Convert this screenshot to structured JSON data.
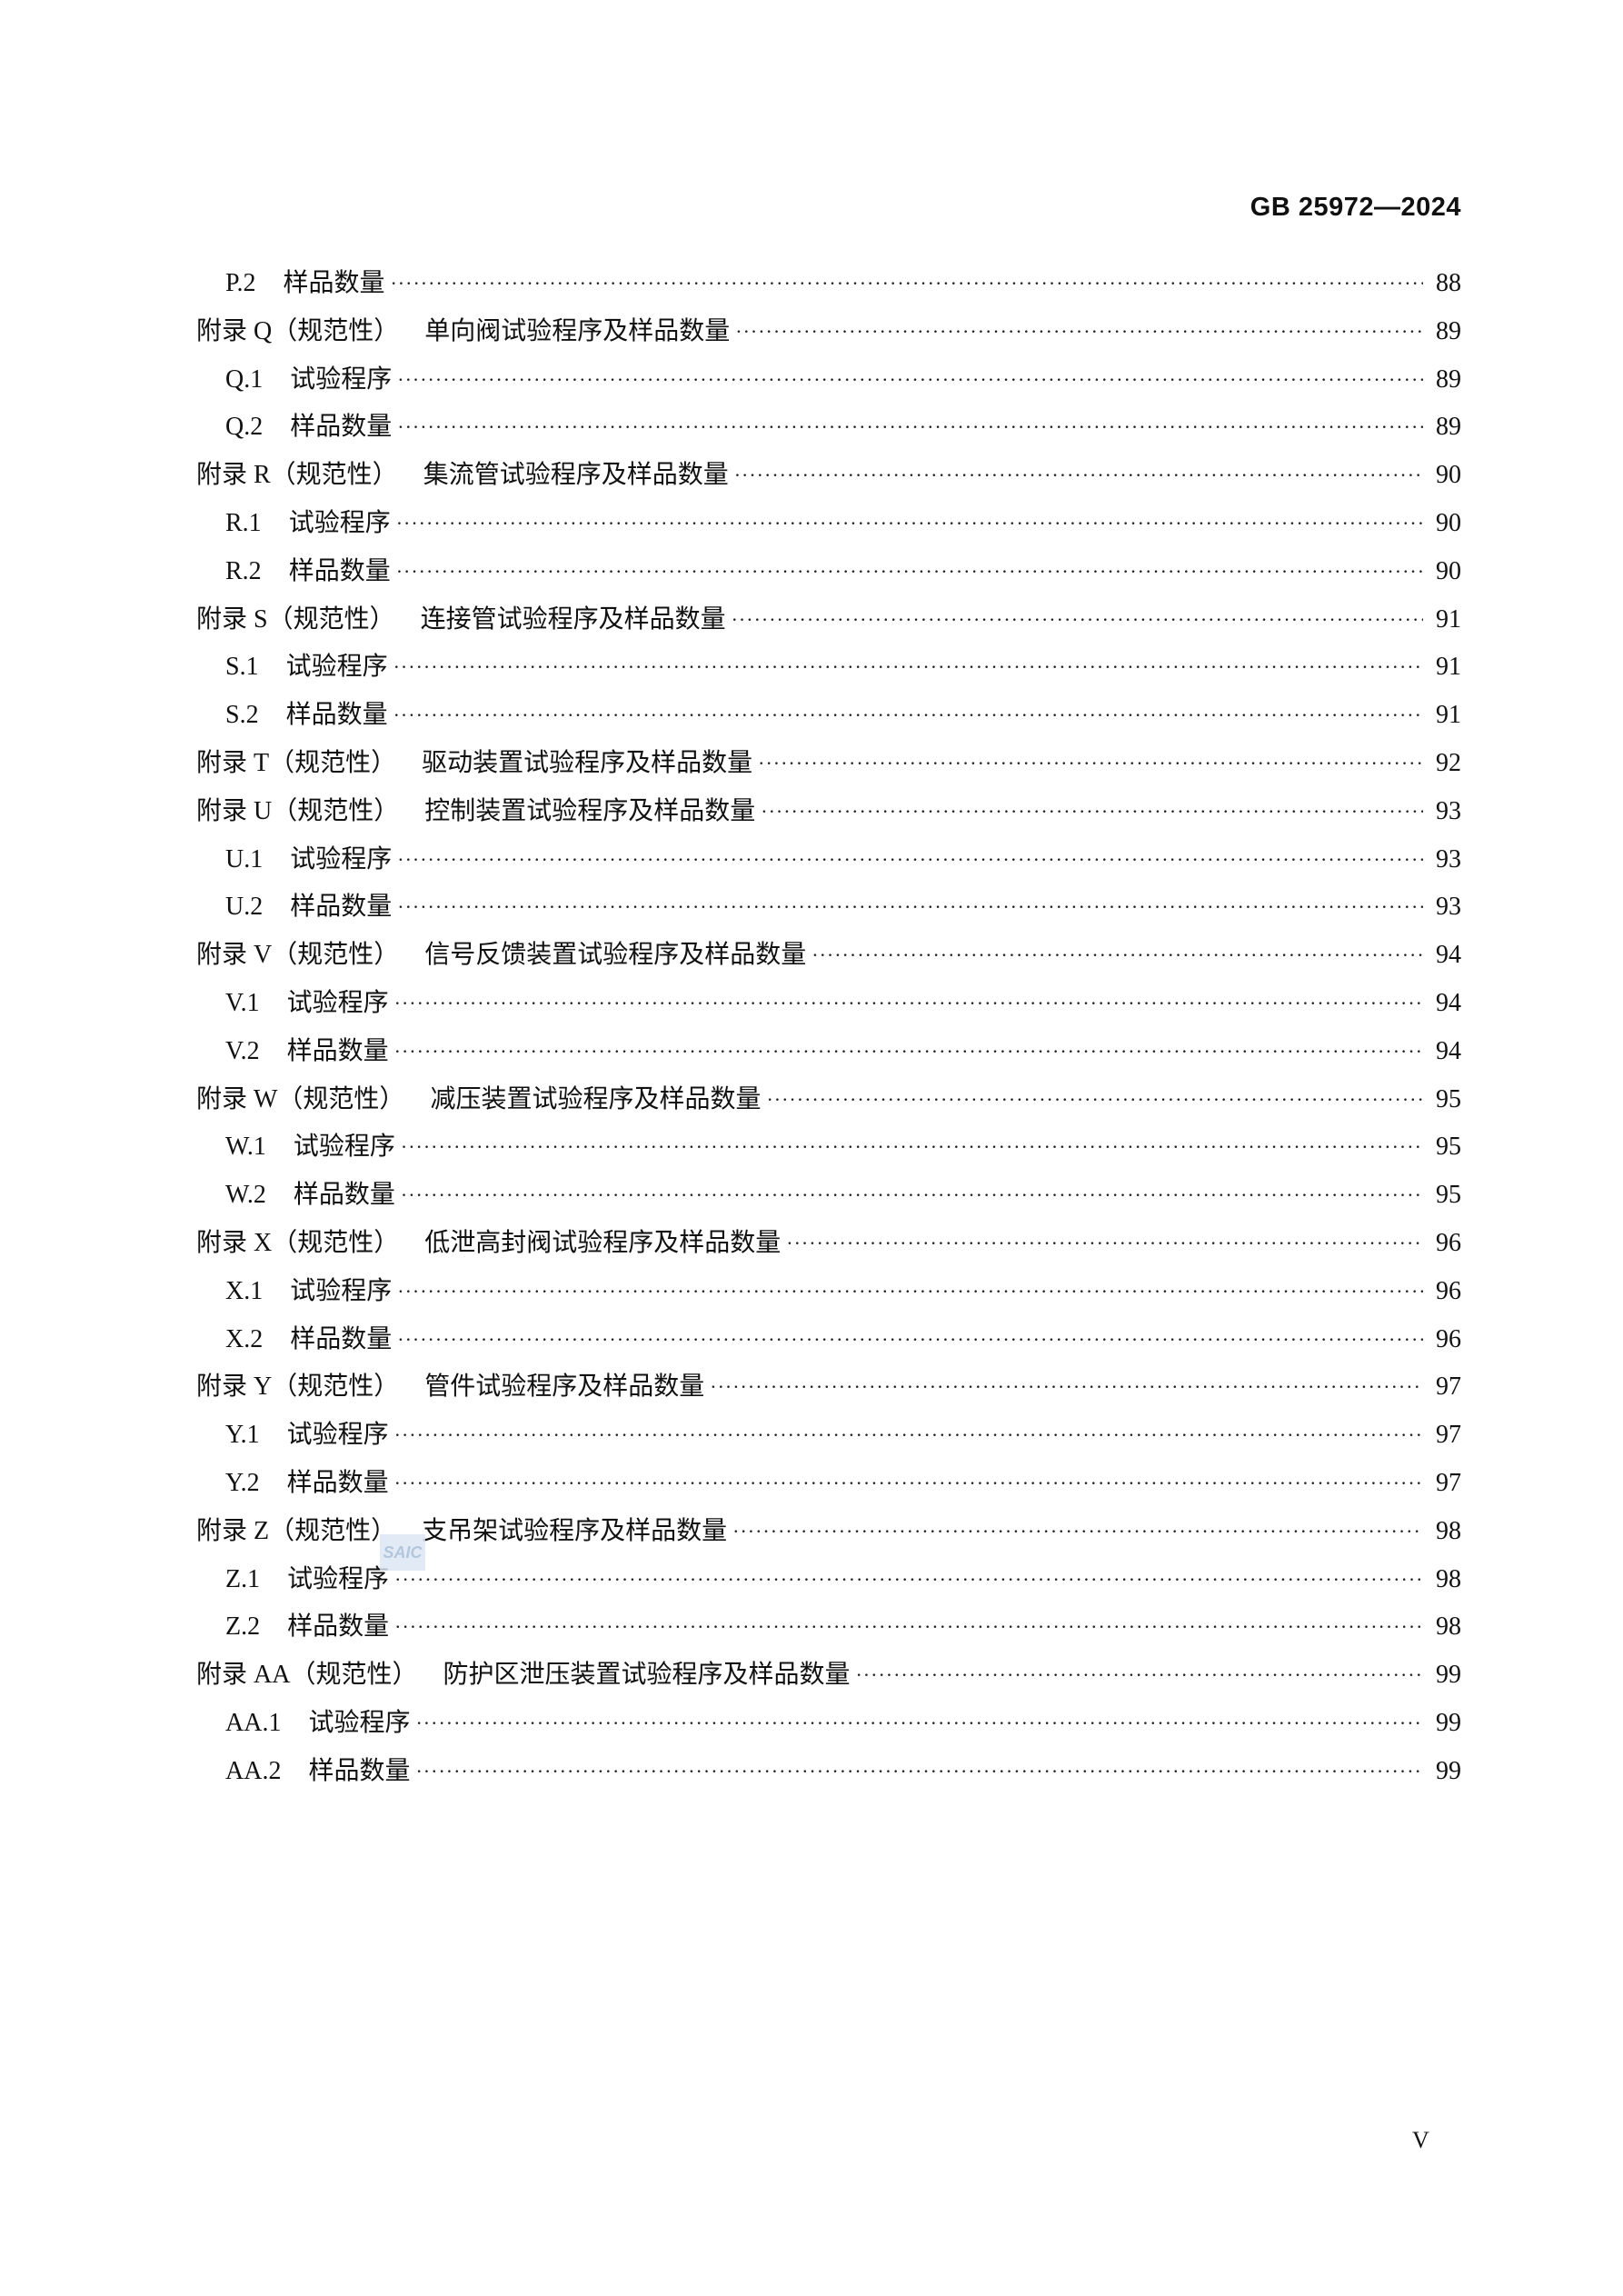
{
  "header": {
    "standard_number": "GB 25972—2024"
  },
  "watermark": "SAIC",
  "toc": [
    {
      "level": 2,
      "code": "P.2",
      "title": "样品数量",
      "page": "88"
    },
    {
      "level": 1,
      "code": "附录 Q（规范性）",
      "title": "单向阀试验程序及样品数量",
      "page": "89"
    },
    {
      "level": 2,
      "code": "Q.1",
      "title": "试验程序",
      "page": "89"
    },
    {
      "level": 2,
      "code": "Q.2",
      "title": "样品数量",
      "page": "89"
    },
    {
      "level": 1,
      "code": "附录 R（规范性）",
      "title": "集流管试验程序及样品数量",
      "page": "90"
    },
    {
      "level": 2,
      "code": "R.1",
      "title": "试验程序",
      "page": "90"
    },
    {
      "level": 2,
      "code": "R.2",
      "title": "样品数量",
      "page": "90"
    },
    {
      "level": 1,
      "code": "附录 S（规范性）",
      "title": "连接管试验程序及样品数量",
      "page": "91"
    },
    {
      "level": 2,
      "code": "S.1",
      "title": "试验程序",
      "page": "91"
    },
    {
      "level": 2,
      "code": "S.2",
      "title": "样品数量",
      "page": "91"
    },
    {
      "level": 1,
      "code": "附录 T（规范性）",
      "title": "驱动装置试验程序及样品数量",
      "page": "92"
    },
    {
      "level": 1,
      "code": "附录 U（规范性）",
      "title": "控制装置试验程序及样品数量",
      "page": "93"
    },
    {
      "level": 2,
      "code": "U.1",
      "title": "试验程序",
      "page": "93"
    },
    {
      "level": 2,
      "code": "U.2",
      "title": "样品数量",
      "page": "93"
    },
    {
      "level": 1,
      "code": "附录 V（规范性）",
      "title": "信号反馈装置试验程序及样品数量",
      "page": "94"
    },
    {
      "level": 2,
      "code": "V.1",
      "title": "试验程序",
      "page": "94"
    },
    {
      "level": 2,
      "code": "V.2",
      "title": "样品数量",
      "page": "94"
    },
    {
      "level": 1,
      "code": "附录 W（规范性）",
      "title": "减压装置试验程序及样品数量",
      "page": "95"
    },
    {
      "level": 2,
      "code": "W.1",
      "title": "试验程序",
      "page": "95"
    },
    {
      "level": 2,
      "code": "W.2",
      "title": "样品数量",
      "page": "95"
    },
    {
      "level": 1,
      "code": "附录 X（规范性）",
      "title": "低泄高封阀试验程序及样品数量",
      "page": "96"
    },
    {
      "level": 2,
      "code": "X.1",
      "title": "试验程序",
      "page": "96"
    },
    {
      "level": 2,
      "code": "X.2",
      "title": "样品数量",
      "page": "96"
    },
    {
      "level": 1,
      "code": "附录 Y（规范性）",
      "title": "管件试验程序及样品数量",
      "page": "97"
    },
    {
      "level": 2,
      "code": "Y.1",
      "title": "试验程序",
      "page": "97"
    },
    {
      "level": 2,
      "code": "Y.2",
      "title": "样品数量",
      "page": "97"
    },
    {
      "level": 1,
      "code": "附录 Z（规范性）",
      "title": "支吊架试验程序及样品数量",
      "page": "98"
    },
    {
      "level": 2,
      "code": "Z.1",
      "title": "试验程序",
      "page": "98"
    },
    {
      "level": 2,
      "code": "Z.2",
      "title": "样品数量",
      "page": "98"
    },
    {
      "level": 1,
      "code": "附录 AA（规范性）",
      "title": "防护区泄压装置试验程序及样品数量",
      "page": "99"
    },
    {
      "level": 2,
      "code": "AA.1",
      "title": "试验程序",
      "page": "99"
    },
    {
      "level": 2,
      "code": "AA.2",
      "title": "样品数量",
      "page": "99"
    }
  ],
  "footer": {
    "page_number": "V"
  }
}
